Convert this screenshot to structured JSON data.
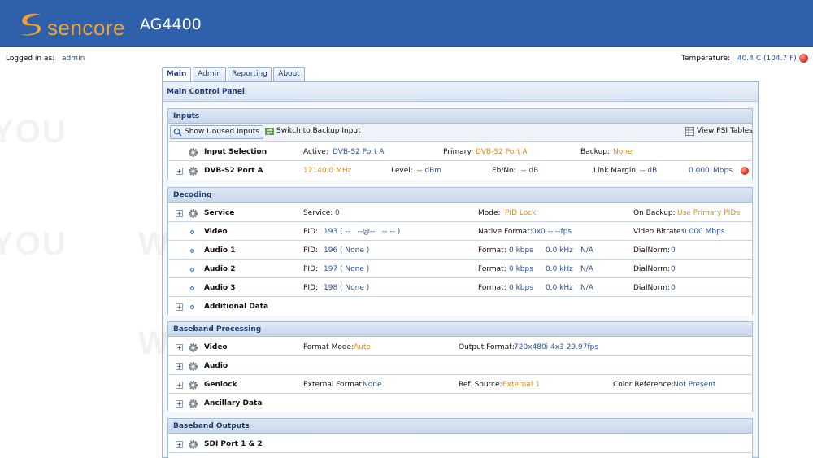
{
  "header": {
    "brand": "sencore",
    "model": "AG4400",
    "colors": {
      "bar": "#2f60aa",
      "logo": "#f0a23a"
    }
  },
  "status": {
    "logged_in_label": "Logged in as:",
    "user": "admin",
    "temp_label": "Temperature:",
    "temp_value": "40.4 C (104.7 F)",
    "temp_led": "red"
  },
  "tabs": [
    {
      "label": "Main",
      "active": true
    },
    {
      "label": "Admin"
    },
    {
      "label": "Reporting"
    },
    {
      "label": "About"
    }
  ],
  "panel": {
    "title": "Main Control Panel"
  },
  "inputs": {
    "title": "Inputs",
    "toolbar": {
      "show_unused": "Show Unused Inputs",
      "switch_backup": "Switch to Backup Input",
      "view_psi": "View PSI Tables"
    },
    "selection": {
      "name": "Input Selection",
      "active_label": "Active:",
      "active": "DVB-S2 Port A",
      "primary_label": "Primary:",
      "primary": "DVB-S2 Port A",
      "backup_label": "Backup:",
      "backup": "None"
    },
    "port": {
      "name": "DVB-S2 Port A",
      "freq": "12140.0 MHz",
      "level_label": "Level:",
      "level": "-- dBm",
      "ebno_label": "Eb/No:",
      "ebno": "-- dB",
      "margin_label": "Link Margin:",
      "margin": "-- dB",
      "rate": "0.000",
      "rate_unit": "Mbps",
      "led": "red"
    }
  },
  "decoding": {
    "title": "Decoding",
    "service": {
      "name": "Service",
      "service_label": "Service:",
      "service": "0",
      "mode_label": "Mode:",
      "mode": "PID Lock",
      "backup_label": "On Backup:",
      "backup": "Use Primary PIDs"
    },
    "video": {
      "name": "Video",
      "pid_label": "PID:",
      "pid": "193 ( --   --@--   -- -- )",
      "fmt_label": "Native Format:",
      "fmt": "0x0 -- --fps",
      "bitrate_label": "Video Bitrate:",
      "bitrate": "0.000 Mbps"
    },
    "audio": [
      {
        "name": "Audio 1",
        "pid_label": "PID:",
        "pid": "196 ( None )",
        "fmt_label": "Format:",
        "kbps": "0 kbps",
        "khz": "0.0 kHz",
        "na": "N/A",
        "dn_label": "DialNorm:",
        "dn": "0"
      },
      {
        "name": "Audio 2",
        "pid_label": "PID:",
        "pid": "197 ( None )",
        "fmt_label": "Format:",
        "kbps": "0 kbps",
        "khz": "0.0 kHz",
        "na": "N/A",
        "dn_label": "DialNorm:",
        "dn": "0"
      },
      {
        "name": "Audio 3",
        "pid_label": "PID:",
        "pid": "198 ( None )",
        "fmt_label": "Format:",
        "kbps": "0 kbps",
        "khz": "0.0 kHz",
        "na": "N/A",
        "dn_label": "DialNorm:",
        "dn": "0"
      }
    ],
    "additional": {
      "name": "Additional Data"
    }
  },
  "baseband": {
    "title": "Baseband Processing",
    "video": {
      "name": "Video",
      "mode_label": "Format Mode:",
      "mode": "Auto",
      "out_label": "Output Format:",
      "out": "720x480i 4x3 29.97fps"
    },
    "audio": {
      "name": "Audio"
    },
    "genlock": {
      "name": "Genlock",
      "ext_label": "External Format:",
      "ext": "None",
      "ref_label": "Ref. Source:",
      "ref": "External 1",
      "color_label": "Color Reference:",
      "color": "Not Present"
    },
    "ancillary": {
      "name": "Ancillary Data"
    }
  },
  "outputs": {
    "title": "Baseband Outputs",
    "sdi": {
      "name": "SDI Port 1 & 2"
    }
  }
}
